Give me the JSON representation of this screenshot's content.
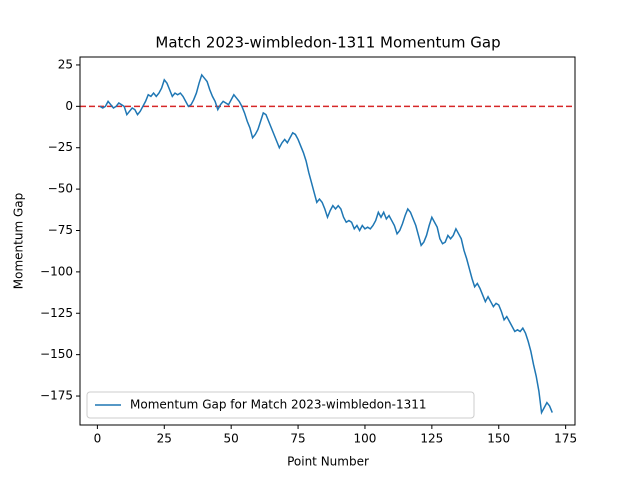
{
  "chart_data": {
    "type": "line",
    "title": "Match 2023-wimbledon-1311 Momentum Gap",
    "xlabel": "Point Number",
    "ylabel": "Momentum Gap",
    "x": [
      1,
      2,
      3,
      4,
      5,
      6,
      7,
      8,
      9,
      10,
      11,
      12,
      13,
      14,
      15,
      16,
      17,
      18,
      19,
      20,
      21,
      22,
      23,
      24,
      25,
      26,
      27,
      28,
      29,
      30,
      31,
      32,
      33,
      34,
      35,
      36,
      37,
      38,
      39,
      40,
      41,
      42,
      43,
      44,
      45,
      46,
      47,
      48,
      49,
      50,
      51,
      52,
      53,
      54,
      55,
      56,
      57,
      58,
      59,
      60,
      61,
      62,
      63,
      64,
      65,
      66,
      67,
      68,
      69,
      70,
      71,
      72,
      73,
      74,
      75,
      76,
      77,
      78,
      79,
      80,
      81,
      82,
      83,
      84,
      85,
      86,
      87,
      88,
      89,
      90,
      91,
      92,
      93,
      94,
      95,
      96,
      97,
      98,
      99,
      100,
      101,
      102,
      103,
      104,
      105,
      106,
      107,
      108,
      109,
      110,
      111,
      112,
      113,
      114,
      115,
      116,
      117,
      118,
      119,
      120,
      121,
      122,
      123,
      124,
      125,
      126,
      127,
      128,
      129,
      130,
      131,
      132,
      133,
      134,
      135,
      136,
      137,
      138,
      139,
      140,
      141,
      142,
      143,
      144,
      145,
      146,
      147,
      148,
      149,
      150,
      151,
      152,
      153,
      154,
      155,
      156,
      157,
      158,
      159,
      160,
      161,
      162,
      163,
      164,
      165,
      166,
      167,
      168,
      169,
      170
    ],
    "series": [
      {
        "name": "Momentum Gap for Match 2023-wimbledon-1311",
        "color": "#1f77b4",
        "values": [
          0,
          -1,
          0,
          3,
          1,
          -1,
          0,
          2,
          1,
          0,
          -5,
          -3,
          -1,
          -2,
          -5,
          -3,
          0,
          3,
          7,
          6,
          8,
          6,
          8,
          11,
          16,
          14,
          10,
          6,
          8,
          7,
          8,
          6,
          3,
          0,
          1,
          4,
          8,
          14,
          19,
          17,
          15,
          10,
          6,
          3,
          -2,
          1,
          3,
          2,
          1,
          4,
          7,
          5,
          3,
          0,
          -4,
          -9,
          -13,
          -19,
          -17,
          -14,
          -9,
          -4,
          -5,
          -9,
          -13,
          -17,
          -21,
          -25,
          -22,
          -20,
          -22,
          -19,
          -16,
          -17,
          -20,
          -24,
          -28,
          -33,
          -40,
          -46,
          -52,
          -58,
          -56,
          -58,
          -62,
          -67,
          -63,
          -60,
          -62,
          -60,
          -62,
          -67,
          -70,
          -69,
          -70,
          -74,
          -72,
          -75,
          -72,
          -74,
          -73,
          -74,
          -72,
          -69,
          -64,
          -67,
          -64,
          -68,
          -66,
          -69,
          -72,
          -77,
          -75,
          -71,
          -66,
          -62,
          -64,
          -68,
          -72,
          -78,
          -84,
          -82,
          -78,
          -72,
          -67,
          -70,
          -73,
          -80,
          -83,
          -82,
          -78,
          -80,
          -78,
          -74,
          -77,
          -80,
          -87,
          -92,
          -98,
          -104,
          -109,
          -107,
          -110,
          -114,
          -118,
          -115,
          -118,
          -121,
          -119,
          -120,
          -124,
          -129,
          -127,
          -130,
          -133,
          -136,
          -135,
          -136,
          -134,
          -137,
          -142,
          -148,
          -156,
          -163,
          -172,
          -185,
          -182,
          -179,
          -181,
          -185
        ]
      }
    ],
    "hline": {
      "value": 0,
      "color": "#d62728"
    },
    "xlim": [
      -6.5,
      178.5
    ],
    "ylim": [
      -192.5,
      29.8
    ],
    "xticks": [
      0,
      25,
      50,
      75,
      100,
      125,
      150,
      175
    ],
    "yticks": [
      25,
      0,
      {
        "value": -25,
        "label": "−25"
      },
      {
        "value": -50,
        "label": "−50"
      },
      {
        "value": -75,
        "label": "−75"
      },
      {
        "value": -100,
        "label": "−100"
      },
      {
        "value": -125,
        "label": "−125"
      },
      {
        "value": -150,
        "label": "−150"
      },
      {
        "value": -175,
        "label": "−175"
      }
    ],
    "grid": false,
    "legend": "lower left"
  }
}
